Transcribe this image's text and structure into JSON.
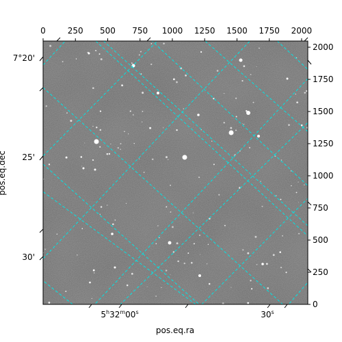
{
  "figure": {
    "xlabel": "pos.eq.ra",
    "ylabel": "pos.eq.dec",
    "pixel_x_ticks": [
      "0",
      "250",
      "500",
      "750",
      "1000",
      "1250",
      "1500",
      "1750",
      "2000"
    ],
    "pixel_y_ticks": [
      "0",
      "250",
      "500",
      "750",
      "1000",
      "1250",
      "1500",
      "1750",
      "2000"
    ],
    "dec_ticks": [
      "7°20'",
      "25'",
      "30'"
    ],
    "ra_ticks": [
      {
        "h": "5",
        "m": "32",
        "s": "00",
        "label": "5h32m00s"
      },
      {
        "label": "30s"
      }
    ],
    "grid_color": "#00e5e5",
    "image_colormap": "gray"
  }
}
